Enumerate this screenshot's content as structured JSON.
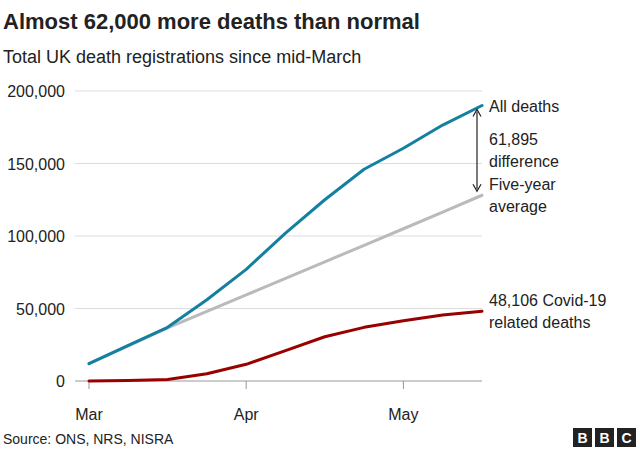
{
  "chart_data": {
    "type": "line",
    "title": "Almost 62,000 more deaths than normal",
    "subtitle": "Total UK death registrations since mid-March",
    "source": "Source: ONS, NRS, NISRA",
    "credit": "BBC",
    "categories": [
      "Mar",
      null,
      null,
      null,
      "Apr",
      null,
      null,
      null,
      "May",
      null,
      null
    ],
    "series": [
      {
        "name": "All deaths",
        "color": "#1380a1",
        "values": [
          12000,
          24500,
          37000,
          56000,
          77000,
          102000,
          125000,
          146000,
          160500,
          176500,
          190000
        ]
      },
      {
        "name": "Five-year average",
        "color": "#bababa",
        "values": [
          12000,
          24300,
          36600,
          48000,
          59400,
          70800,
          82200,
          93600,
          105000,
          116500,
          128105
        ]
      },
      {
        "name": "48,106 Covid-19 related deaths",
        "color": "#990000",
        "values": [
          0,
          300,
          1000,
          5000,
          11500,
          21000,
          30500,
          37000,
          41500,
          45500,
          48106
        ]
      }
    ],
    "annotations": [
      {
        "text": "61,895 difference"
      }
    ],
    "ylim": [
      0,
      200000
    ],
    "yticks": [
      0,
      {
        "value": 50000,
        "label": "50,000"
      },
      {
        "value": 100000,
        "label": "100,000"
      },
      {
        "value": 150000,
        "label": "150,000"
      },
      {
        "value": 200000,
        "label": "200,000"
      }
    ],
    "grid": true
  }
}
